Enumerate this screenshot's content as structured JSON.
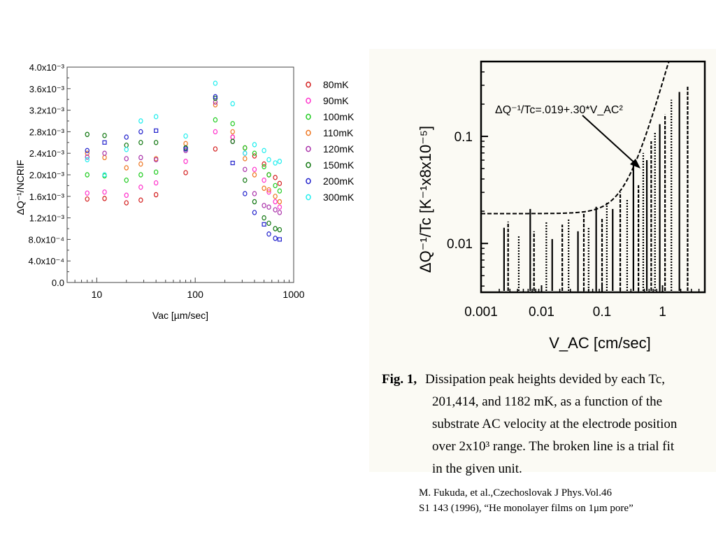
{
  "chart_data": [
    {
      "type": "scatter",
      "xlabel": "Vac [µm/sec]",
      "ylabel": "ΔQ⁻¹/NCRIF",
      "x_scale": "log",
      "xlim": [
        5,
        1000
      ],
      "ylim": [
        0,
        0.004
      ],
      "x_ticks": [
        "10",
        "100",
        "1000"
      ],
      "y_ticks": [
        "0.0",
        "4.0x10⁻⁴",
        "8.0x10⁻⁴",
        "1.2x10⁻³",
        "1.6x10⁻³",
        "2.0x10⁻³",
        "2.4x10⁻³",
        "2.8x10⁻³",
        "3.2x10⁻³",
        "3.6x10⁻³",
        "4.0x10⁻³"
      ],
      "legend_position": "right",
      "grid": false,
      "series": [
        {
          "name": "80mK",
          "color": "#d42020",
          "x": [
            8,
            12,
            20,
            28,
            40,
            80,
            160,
            240,
            320,
            400,
            500,
            560,
            650,
            720
          ],
          "y": [
            0.00155,
            0.00156,
            0.00148,
            0.00153,
            0.00163,
            0.00204,
            0.00248,
            0.0027,
            0.0025,
            0.00235,
            0.0022,
            0.002,
            0.00195,
            0.00184
          ]
        },
        {
          "name": "90mK",
          "color": "#ff33cc",
          "x": [
            8,
            12,
            20,
            28,
            40,
            80,
            160,
            240,
            320,
            400,
            500,
            560,
            650,
            720
          ],
          "y": [
            0.00166,
            0.00168,
            0.00162,
            0.00177,
            0.00185,
            0.00225,
            0.0028,
            0.0027,
            0.0024,
            0.0021,
            0.0019,
            0.00168,
            0.0015,
            0.0014
          ]
        },
        {
          "name": "100mK",
          "color": "#22cc22",
          "x": [
            8,
            12,
            20,
            28,
            40,
            80,
            160,
            240,
            320,
            400,
            500,
            560,
            650,
            720
          ],
          "y": [
            0.002,
            0.00198,
            0.0019,
            0.002,
            0.00205,
            0.0025,
            0.00302,
            0.00295,
            0.0025,
            0.0024,
            0.00215,
            0.002,
            0.0018,
            0.0017
          ]
        },
        {
          "name": "110mK",
          "color": "#ee7722",
          "x": [
            8,
            12,
            20,
            28,
            40,
            80,
            160,
            240,
            320,
            400,
            500,
            560,
            650,
            720
          ],
          "y": [
            0.0024,
            0.00232,
            0.00213,
            0.0022,
            0.0023,
            0.00258,
            0.0033,
            0.0028,
            0.0023,
            0.002,
            0.00175,
            0.00172,
            0.0016,
            0.0015
          ]
        },
        {
          "name": "120mK",
          "color": "#aa33aa",
          "x": [
            8,
            12,
            20,
            28,
            40,
            80,
            160,
            240,
            320,
            400,
            500,
            560,
            650,
            720
          ],
          "y": [
            0.00233,
            0.0024,
            0.0023,
            0.00232,
            0.00228,
            0.00245,
            0.00335,
            0.00262,
            0.0021,
            0.00165,
            0.00143,
            0.0014,
            0.00135,
            0.0013
          ]
        },
        {
          "name": "150mK",
          "color": "#117711",
          "x": [
            8,
            12,
            20,
            28,
            40,
            80,
            160,
            240,
            320,
            400,
            500,
            560,
            650,
            720
          ],
          "y": [
            0.00275,
            0.00273,
            0.00255,
            0.0026,
            0.0026,
            0.0025,
            0.00342,
            0.00262,
            0.0019,
            0.0015,
            0.0012,
            0.0011,
            0.001,
            0.00098
          ]
        },
        {
          "name": "200mK",
          "color": "#2222cc",
          "x": [
            8,
            12,
            20,
            28,
            40,
            80,
            160,
            240,
            320,
            400,
            500,
            560,
            650,
            720
          ],
          "y": [
            0.00245,
            0.0026,
            0.0027,
            0.0028,
            0.00282,
            0.00248,
            0.00345,
            0.00222,
            0.00165,
            0.0013,
            0.00108,
            0.0009,
            0.00082,
            0.0008
          ]
        },
        {
          "name": "300mK",
          "color": "#22eeee",
          "x": [
            8,
            12,
            20,
            28,
            40,
            80,
            160,
            240,
            320,
            400,
            500,
            560,
            650,
            720
          ],
          "y": [
            0.00228,
            0.002,
            0.00247,
            0.003,
            0.00308,
            0.00272,
            0.0037,
            0.00332,
            0.0024,
            0.00256,
            0.00245,
            0.00228,
            0.00222,
            0.00225
          ]
        }
      ]
    },
    {
      "type": "line",
      "xlabel": "V_AC [cm/sec]",
      "ylabel": "ΔQ⁻¹/Tc [K⁻¹x8x10⁻⁵]",
      "x_scale": "log",
      "y_scale": "log",
      "xlim": [
        0.001,
        5
      ],
      "ylim": [
        0.0035,
        0.5
      ],
      "x_ticks": [
        "0.001",
        "0.01",
        "0.1",
        "1"
      ],
      "y_ticks": [
        "0.01",
        "0.1"
      ],
      "annotation": "ΔQ⁻¹/Tc=.019+.30*V_AC²",
      "fit": {
        "a": 0.019,
        "b": 0.3
      },
      "grid": false,
      "peaks": [
        {
          "x": 0.0024,
          "h": 0.014
        },
        {
          "x": 0.0028,
          "h": 0.016
        },
        {
          "x": 0.0042,
          "h": 0.012
        },
        {
          "x": 0.0065,
          "h": 0.021
        },
        {
          "x": 0.0075,
          "h": 0.013
        },
        {
          "x": 0.012,
          "h": 0.016
        },
        {
          "x": 0.015,
          "h": 0.011
        },
        {
          "x": 0.022,
          "h": 0.015
        },
        {
          "x": 0.028,
          "h": 0.017
        },
        {
          "x": 0.04,
          "h": 0.013
        },
        {
          "x": 0.05,
          "h": 0.02
        },
        {
          "x": 0.06,
          "h": 0.014
        },
        {
          "x": 0.08,
          "h": 0.022
        },
        {
          "x": 0.1,
          "h": 0.017
        },
        {
          "x": 0.12,
          "h": 0.024
        },
        {
          "x": 0.15,
          "h": 0.021
        },
        {
          "x": 0.2,
          "h": 0.03
        },
        {
          "x": 0.26,
          "h": 0.026
        },
        {
          "x": 0.33,
          "h": 0.055
        },
        {
          "x": 0.4,
          "h": 0.035
        },
        {
          "x": 0.48,
          "h": 0.07
        },
        {
          "x": 0.55,
          "h": 0.06
        },
        {
          "x": 0.65,
          "h": 0.09
        },
        {
          "x": 0.75,
          "h": 0.11
        },
        {
          "x": 0.9,
          "h": 0.13
        },
        {
          "x": 1.1,
          "h": 0.16
        },
        {
          "x": 1.4,
          "h": 0.22
        },
        {
          "x": 1.9,
          "h": 0.26
        },
        {
          "x": 2.6,
          "h": 0.3
        }
      ]
    }
  ],
  "caption": {
    "fig_label": "Fig. 1,",
    "line1": "Dissipation  peak heights devided by each Tc,",
    "line2": "201,414, and 1182 mK,     as  a function of the",
    "line3": "substrate AC velocity at the electrode position",
    "line4": "over 2x10³ range.  The broken line is a trial fit",
    "line5": "in the given unit."
  },
  "citation": {
    "line1": "M. Fukuda, et al.,Czechoslovak J Phys.Vol.46",
    "line2": "S1 143 (1996), “He monolayer films on 1μm pore”"
  }
}
